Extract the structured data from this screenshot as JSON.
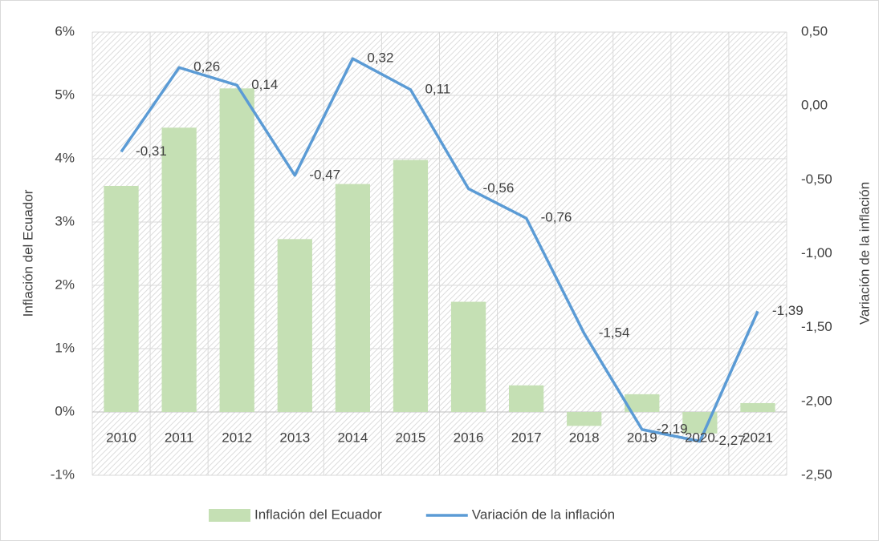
{
  "chart_data": {
    "type": "bar_line",
    "categories": [
      "2010",
      "2011",
      "2012",
      "2013",
      "2014",
      "2015",
      "2016",
      "2017",
      "2018",
      "2019",
      "2020",
      "2021"
    ],
    "series": [
      {
        "name": "Inflación del Ecuador",
        "type": "bar",
        "color": "#c5e0b4",
        "axis": "y",
        "values": [
          3.57,
          4.49,
          5.11,
          2.73,
          3.6,
          3.98,
          1.74,
          0.42,
          -0.22,
          0.28,
          -0.34,
          0.14
        ]
      },
      {
        "name": "Variación de la inflación",
        "type": "line",
        "color": "#5b9bd5",
        "axis": "y2",
        "values": [
          -0.31,
          0.26,
          0.14,
          -0.47,
          0.32,
          0.11,
          -0.56,
          -0.76,
          -1.54,
          -2.19,
          -2.27,
          -1.39
        ],
        "value_labels": [
          "-0,31",
          "0,26",
          "0,14",
          "-0,47",
          "0,32",
          "0,11",
          "-0,56",
          "-0,76",
          "-1,54",
          "-2,19",
          "-2,27",
          "-1,39"
        ]
      }
    ],
    "ylabel": "Inflación del Ecuador",
    "y2label": "Variación de la inflación",
    "ylim": [
      -1,
      6
    ],
    "yticks": [
      {
        "value": -1,
        "label": "-1%"
      },
      {
        "value": 0,
        "label": "0%"
      },
      {
        "value": 1,
        "label": "1%"
      },
      {
        "value": 2,
        "label": "2%"
      },
      {
        "value": 3,
        "label": "3%"
      },
      {
        "value": 4,
        "label": "4%"
      },
      {
        "value": 5,
        "label": "5%"
      },
      {
        "value": 6,
        "label": "6%"
      }
    ],
    "y2lim": [
      -2.5,
      0.5
    ],
    "y2ticks": [
      {
        "value": -2.5,
        "label": "-2,50"
      },
      {
        "value": -2,
        "label": "-2,00"
      },
      {
        "value": -1.5,
        "label": "-1,50"
      },
      {
        "value": -1,
        "label": "-1,00"
      },
      {
        "value": -0.5,
        "label": "-0,50"
      },
      {
        "value": 0,
        "label": "0,00"
      },
      {
        "value": 0.5,
        "label": "0,50"
      }
    ],
    "grid": true,
    "legend": "bottom"
  }
}
